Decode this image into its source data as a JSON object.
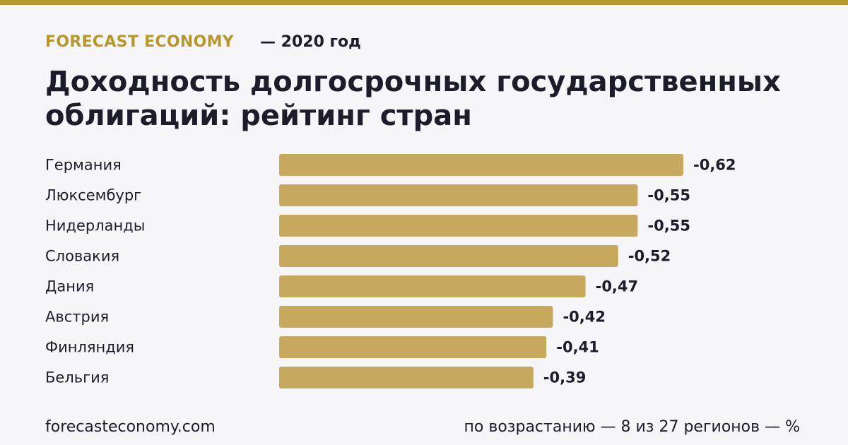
{
  "chart_data": {
    "type": "hbar",
    "brand": "FORECAST ECONOMY",
    "subtitle": "— 2020 год",
    "title": "Доходность долгосрочных государственных облигаций: рейтинг стран",
    "categories": [
      "Германия",
      "Люксембург",
      "Нидерланды",
      "Словакия",
      "Дания",
      "Австрия",
      "Финляндия",
      "Бельгия"
    ],
    "values": [
      -0.62,
      -0.55,
      -0.55,
      -0.52,
      -0.47,
      -0.42,
      -0.41,
      -0.39
    ],
    "value_labels": [
      "-0,62",
      "-0,55",
      "-0,55",
      "-0,52",
      "-0,47",
      "-0,42",
      "-0,41",
      "-0,39"
    ],
    "color": "#c6a95c",
    "source": "forecasteconomy.com",
    "note": "по возрастанию — 8 из 27 регионов — %"
  }
}
